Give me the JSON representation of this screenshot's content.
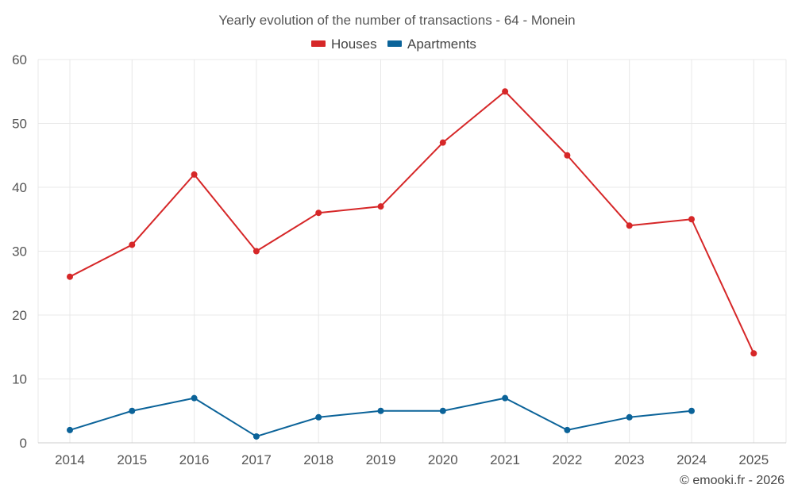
{
  "chart_data": {
    "type": "line",
    "title": "Yearly evolution of the number of transactions - 64 - Monein",
    "xlabel": "",
    "ylabel": "",
    "categories": [
      "2014",
      "2015",
      "2016",
      "2017",
      "2018",
      "2019",
      "2020",
      "2021",
      "2022",
      "2023",
      "2024",
      "2025"
    ],
    "ylim": [
      0,
      60
    ],
    "yticks": [
      0,
      10,
      20,
      30,
      40,
      50,
      60
    ],
    "grid": true,
    "legend_position": "top-center",
    "series": [
      {
        "name": "Houses",
        "color": "#d62728",
        "values": [
          26,
          31,
          42,
          30,
          36,
          37,
          47,
          55,
          45,
          34,
          35,
          14
        ]
      },
      {
        "name": "Apartments",
        "color": "#0b6399",
        "values": [
          2,
          5,
          7,
          1,
          4,
          5,
          5,
          7,
          2,
          4,
          5,
          null
        ]
      }
    ]
  },
  "footer": {
    "credit": "© emooki.fr - 2026"
  }
}
